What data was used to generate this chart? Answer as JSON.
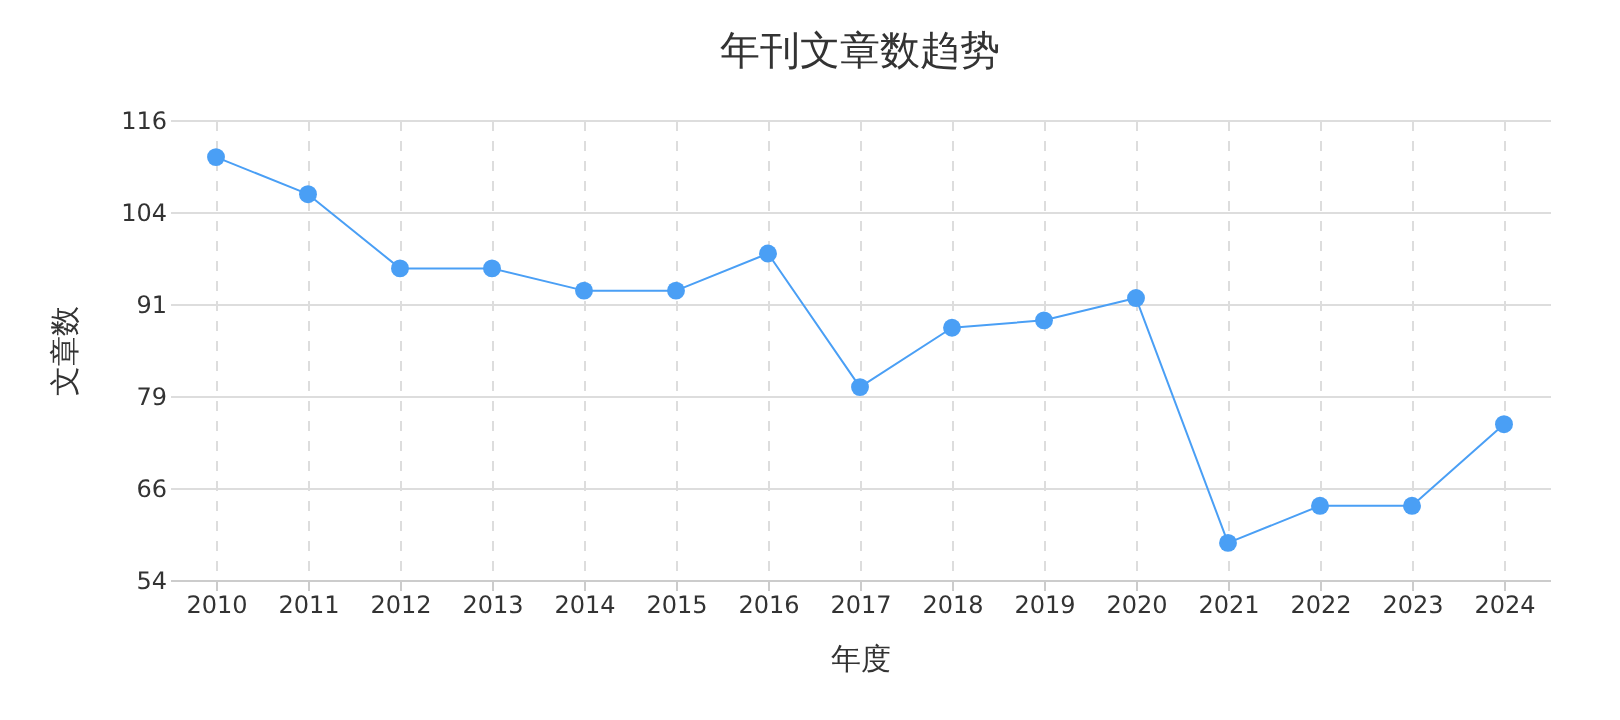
{
  "chart_data": {
    "type": "line",
    "title": "年刊文章数趋势",
    "xlabel": "年度",
    "ylabel": "文章数",
    "categories": [
      "2010",
      "2011",
      "2012",
      "2013",
      "2014",
      "2015",
      "2016",
      "2017",
      "2018",
      "2019",
      "2020",
      "2021",
      "2022",
      "2023",
      "2024"
    ],
    "series": [
      {
        "color": "#4a9ff5",
        "values": [
          111,
          106,
          96,
          96,
          93,
          93,
          98,
          80,
          88,
          89,
          92,
          59,
          64,
          64,
          75
        ]
      }
    ],
    "ylim": [
      54,
      116
    ],
    "yticks": [
      54,
      {
        "value": 66.4,
        "label": "66"
      },
      {
        "value": 78.8,
        "label": "79"
      },
      {
        "value": 91.2,
        "label": "91"
      },
      {
        "value": 103.6,
        "label": "104"
      },
      116
    ],
    "grid": true,
    "marker": "circle",
    "line_style": "solid"
  }
}
